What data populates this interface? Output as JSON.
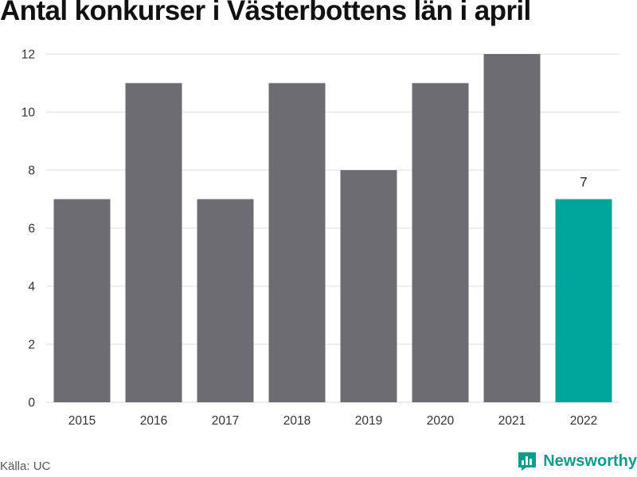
{
  "title": "Antal konkurser i Västerbottens län i april",
  "source": "Källa: UC",
  "brand": {
    "name": "Newsworthy",
    "icon": "bar-chart-bubble-icon",
    "color": "#0a9c8c"
  },
  "chart_data": {
    "type": "bar",
    "title": "Antal konkurser i Västerbottens län i april",
    "xlabel": "",
    "ylabel": "",
    "categories": [
      "2015",
      "2016",
      "2017",
      "2018",
      "2019",
      "2020",
      "2021",
      "2022"
    ],
    "values": [
      7,
      11,
      7,
      11,
      8,
      11,
      12,
      7
    ],
    "ylim": [
      0,
      12
    ],
    "yticks": [
      0,
      2,
      4,
      6,
      8,
      10,
      12
    ],
    "grid": true,
    "legend": "none",
    "colors": {
      "default": "#6d6c71",
      "highlight": "#00a59a",
      "grid": "#dddddd"
    },
    "highlight_index": 7,
    "data_labels": [
      {
        "index": 7,
        "text": "7"
      }
    ]
  }
}
